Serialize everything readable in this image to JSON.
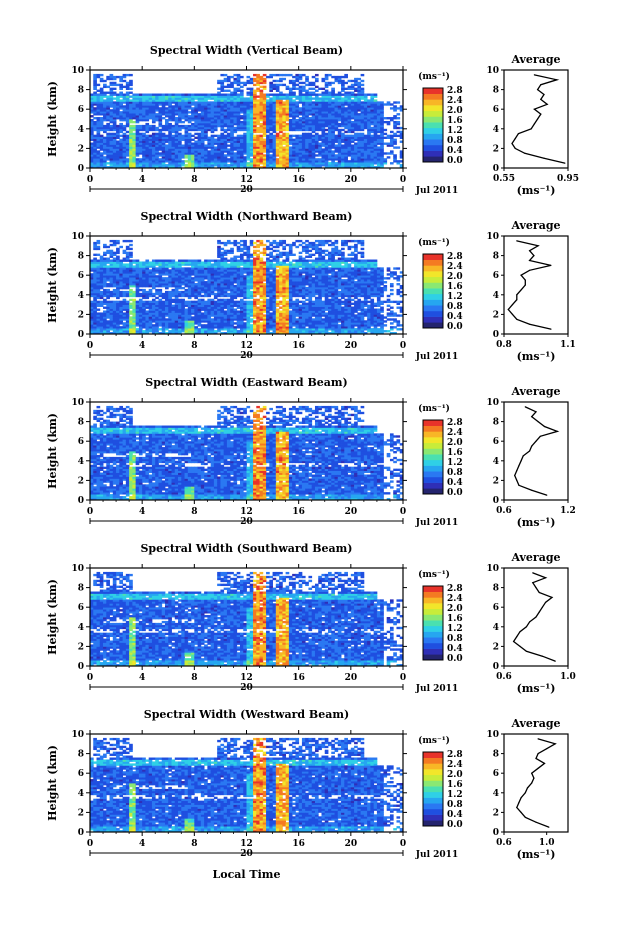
{
  "figure": {
    "xlabel": "Local Time",
    "date_label": "Jul 2011",
    "day_label": "20",
    "colorbar_unit": "(ms⁻¹)",
    "colorbar_ticks": [
      "0.0",
      "0.4",
      "0.8",
      "1.2",
      "1.6",
      "2.0",
      "2.4",
      "2.8"
    ],
    "colormap": [
      "#24246e",
      "#2f2fb7",
      "#1f4fe0",
      "#2a78f2",
      "#26a6f0",
      "#2fd0e6",
      "#4ae0b0",
      "#8ae872",
      "#c8ec3a",
      "#f2e62a",
      "#f8b626",
      "#f47a22",
      "#e8332a"
    ],
    "profile_title": "Average",
    "profile_xlabel": "(ms⁻¹)"
  },
  "chart_data": [
    {
      "type": "heatmap",
      "title": "Spectral Width (Vertical Beam)",
      "ylabel": "Height (km)",
      "xlim": [
        0,
        24
      ],
      "ylim": [
        0,
        10
      ],
      "x_ticks": [
        "0",
        "4",
        "8",
        "12",
        "16",
        "20"
      ],
      "y_ticks": [
        "0",
        "2",
        "4",
        "6",
        "8",
        "10"
      ],
      "profile": {
        "xlim": [
          0.55,
          0.95
        ],
        "x_ticks": [
          "0.55",
          "0.95"
        ],
        "heights": [
          0.5,
          1.0,
          1.5,
          2.0,
          2.5,
          3.0,
          3.5,
          4.0,
          4.5,
          5.0,
          5.5,
          6.0,
          6.5,
          7.0,
          7.5,
          8.0,
          8.5,
          9.0,
          9.5
        ],
        "values": [
          0.93,
          0.8,
          0.68,
          0.62,
          0.6,
          0.62,
          0.64,
          0.72,
          0.74,
          0.76,
          0.78,
          0.74,
          0.82,
          0.78,
          0.8,
          0.76,
          0.78,
          0.88,
          0.74
        ]
      }
    },
    {
      "type": "heatmap",
      "title": "Spectral Width (Northward Beam)",
      "ylabel": "Height (km)",
      "xlim": [
        0,
        24
      ],
      "ylim": [
        0,
        10
      ],
      "x_ticks": [
        "0",
        "4",
        "8",
        "12",
        "16",
        "20"
      ],
      "y_ticks": [
        "0",
        "2",
        "4",
        "6",
        "8",
        "10"
      ],
      "profile": {
        "xlim": [
          0.8,
          1.1
        ],
        "x_ticks": [
          "0.8",
          "1.1"
        ],
        "heights": [
          0.5,
          1.0,
          1.5,
          2.0,
          2.5,
          3.0,
          3.5,
          4.0,
          4.5,
          5.0,
          5.5,
          6.0,
          6.5,
          7.0,
          7.5,
          8.0,
          8.5,
          9.0,
          9.5
        ],
        "values": [
          1.02,
          0.92,
          0.86,
          0.84,
          0.82,
          0.84,
          0.86,
          0.86,
          0.88,
          0.9,
          0.9,
          0.88,
          0.92,
          1.02,
          0.92,
          0.94,
          0.92,
          0.96,
          0.86
        ]
      }
    },
    {
      "type": "heatmap",
      "title": "Spectral Width (Eastward Beam)",
      "ylabel": "Height (km)",
      "xlim": [
        0,
        24
      ],
      "ylim": [
        0,
        10
      ],
      "x_ticks": [
        "0",
        "4",
        "8",
        "12",
        "16",
        "20"
      ],
      "y_ticks": [
        "0",
        "2",
        "4",
        "6",
        "8",
        "10"
      ],
      "profile": {
        "xlim": [
          0.6,
          1.2
        ],
        "x_ticks": [
          "0.6",
          "1.2"
        ],
        "heights": [
          0.5,
          1.0,
          1.5,
          2.0,
          2.5,
          3.0,
          3.5,
          4.0,
          4.5,
          5.0,
          5.5,
          6.0,
          6.5,
          7.0,
          7.5,
          8.0,
          8.5,
          9.0,
          9.5
        ],
        "values": [
          1.0,
          0.86,
          0.74,
          0.72,
          0.7,
          0.72,
          0.74,
          0.76,
          0.78,
          0.84,
          0.86,
          0.9,
          0.94,
          1.1,
          0.98,
          0.92,
          0.86,
          0.9,
          0.8
        ]
      }
    },
    {
      "type": "heatmap",
      "title": "Spectral Width (Southward Beam)",
      "ylabel": "Height (km)",
      "xlim": [
        0,
        24
      ],
      "ylim": [
        0,
        10
      ],
      "x_ticks": [
        "0",
        "4",
        "8",
        "12",
        "16",
        "20"
      ],
      "y_ticks": [
        "0",
        "2",
        "4",
        "6",
        "8",
        "10"
      ],
      "profile": {
        "xlim": [
          0.6,
          1.0
        ],
        "x_ticks": [
          "0.6",
          "1.0"
        ],
        "heights": [
          0.5,
          1.0,
          1.5,
          2.0,
          2.5,
          3.0,
          3.5,
          4.0,
          4.5,
          5.0,
          5.5,
          6.0,
          6.5,
          7.0,
          7.5,
          8.0,
          8.5,
          9.0,
          9.5
        ],
        "values": [
          0.92,
          0.84,
          0.74,
          0.7,
          0.66,
          0.68,
          0.7,
          0.74,
          0.76,
          0.8,
          0.82,
          0.84,
          0.86,
          0.9,
          0.82,
          0.8,
          0.78,
          0.86,
          0.78
        ]
      }
    },
    {
      "type": "heatmap",
      "title": "Spectral Width (Westward Beam)",
      "ylabel": "Height (km)",
      "xlim": [
        0,
        24
      ],
      "ylim": [
        0,
        10
      ],
      "x_ticks": [
        "0",
        "4",
        "8",
        "12",
        "16",
        "20"
      ],
      "y_ticks": [
        "0",
        "2",
        "4",
        "6",
        "8",
        "10"
      ],
      "profile": {
        "xlim": [
          0.6,
          1.2
        ],
        "x_ticks": [
          "0.6",
          "1.0"
        ],
        "heights": [
          0.5,
          1.0,
          1.5,
          2.0,
          2.5,
          3.0,
          3.5,
          4.0,
          4.5,
          5.0,
          5.5,
          6.0,
          6.5,
          7.0,
          7.5,
          8.0,
          8.5,
          9.0,
          9.5
        ],
        "values": [
          1.02,
          0.9,
          0.8,
          0.76,
          0.72,
          0.74,
          0.76,
          0.8,
          0.82,
          0.86,
          0.88,
          0.86,
          0.92,
          0.98,
          0.9,
          0.92,
          1.0,
          1.08,
          0.92
        ]
      }
    }
  ]
}
